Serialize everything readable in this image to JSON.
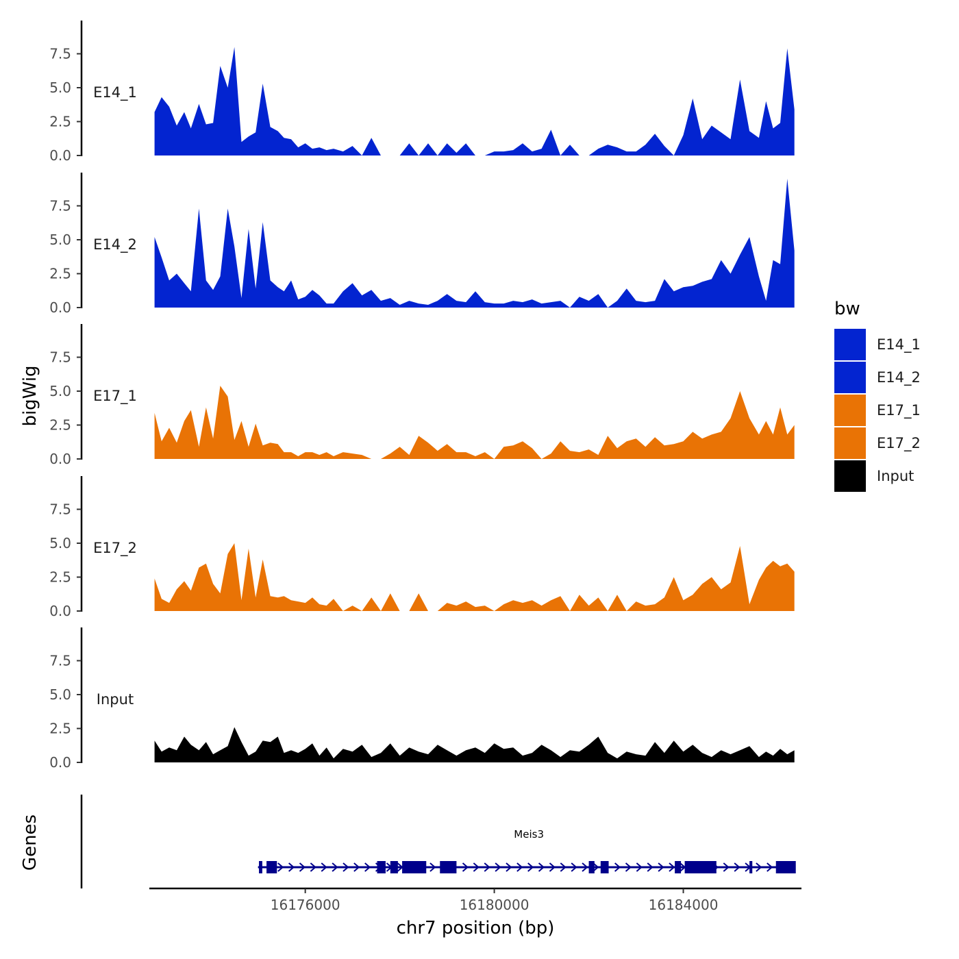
{
  "chart_data": {
    "type": "area",
    "xlabel": "chr7 position (bp)",
    "ylabel": "bigWig",
    "xlim": [
      16172700,
      16186500
    ],
    "ylim": [
      0,
      10
    ],
    "x_ticks": [
      16176000,
      16180000,
      16184000
    ],
    "x_tick_labels": [
      "16176000",
      "16180000",
      "16184000"
    ],
    "y_ticks": [
      0,
      2.5,
      5,
      7.5
    ],
    "y_tick_labels": [
      "0.0",
      "2.5",
      "5.0",
      "7.5"
    ],
    "legend": {
      "title": "bw",
      "entries": [
        {
          "label": "E14_1",
          "color": "#0324d0"
        },
        {
          "label": "E14_2",
          "color": "#0324d0"
        },
        {
          "label": "E17_1",
          "color": "#e97305"
        },
        {
          "label": "E17_2",
          "color": "#e97305"
        },
        {
          "label": "Input",
          "color": "#000000"
        }
      ]
    },
    "series": [
      {
        "name": "E14_1",
        "color": "#0324d0",
        "x": [
          16172810,
          16172960,
          16173120,
          16173280,
          16173440,
          16173580,
          16173750,
          16173900,
          16174050,
          16174200,
          16174360,
          16174500,
          16174650,
          16174800,
          16174950,
          16175100,
          16175260,
          16175420,
          16175550,
          16175700,
          16175850,
          16176000,
          16176150,
          16176300,
          16176450,
          16176600,
          16176800,
          16177000,
          16177200,
          16177400,
          16177600,
          16177800,
          16178000,
          16178200,
          16178400,
          16178600,
          16178800,
          16179000,
          16179200,
          16179400,
          16179600,
          16179800,
          16180000,
          16180200,
          16180400,
          16180600,
          16180800,
          16181000,
          16181200,
          16181400,
          16181600,
          16181800,
          16182000,
          16182200,
          16182400,
          16182600,
          16182800,
          16183000,
          16183200,
          16183400,
          16183600,
          16183800,
          16184000,
          16184200,
          16184400,
          16184600,
          16184800,
          16185000,
          16185200,
          16185400,
          16185600,
          16185750,
          16185900,
          16186050,
          16186200,
          16186350
        ],
        "values": [
          3.2,
          4.3,
          3.6,
          2.2,
          3.2,
          2.0,
          3.8,
          2.3,
          2.4,
          6.6,
          5.0,
          8.0,
          1.0,
          1.4,
          1.7,
          5.3,
          2.1,
          1.8,
          1.3,
          1.2,
          0.6,
          0.9,
          0.5,
          0.6,
          0.4,
          0.5,
          0.3,
          0.7,
          0.0,
          1.3,
          0.0,
          0.0,
          0.0,
          0.9,
          0.0,
          0.9,
          0.0,
          0.9,
          0.2,
          0.9,
          0.0,
          0.0,
          0.3,
          0.3,
          0.4,
          0.9,
          0.3,
          0.5,
          1.9,
          0.0,
          0.8,
          0.0,
          0.0,
          0.5,
          0.8,
          0.6,
          0.3,
          0.3,
          0.8,
          1.6,
          0.7,
          0.0,
          1.5,
          4.2,
          1.2,
          2.2,
          1.7,
          1.2,
          5.6,
          1.8,
          1.3,
          4.0,
          2.0,
          2.4,
          7.9,
          3.4
        ]
      },
      {
        "name": "E14_2",
        "color": "#0324d0",
        "x": [
          16172810,
          16172960,
          16173120,
          16173280,
          16173440,
          16173580,
          16173750,
          16173900,
          16174050,
          16174200,
          16174360,
          16174500,
          16174650,
          16174800,
          16174950,
          16175100,
          16175260,
          16175420,
          16175550,
          16175700,
          16175850,
          16176000,
          16176150,
          16176300,
          16176450,
          16176600,
          16176800,
          16177000,
          16177200,
          16177400,
          16177600,
          16177800,
          16178000,
          16178200,
          16178400,
          16178600,
          16178800,
          16179000,
          16179200,
          16179400,
          16179600,
          16179800,
          16180000,
          16180200,
          16180400,
          16180600,
          16180800,
          16181000,
          16181200,
          16181400,
          16181600,
          16181800,
          16182000,
          16182200,
          16182400,
          16182600,
          16182800,
          16183000,
          16183200,
          16183400,
          16183600,
          16183800,
          16184000,
          16184200,
          16184400,
          16184600,
          16184800,
          16185000,
          16185200,
          16185400,
          16185600,
          16185750,
          16185900,
          16186050,
          16186200,
          16186350
        ],
        "values": [
          5.2,
          3.7,
          2.0,
          2.5,
          1.8,
          1.2,
          7.3,
          2.0,
          1.3,
          2.3,
          7.3,
          4.5,
          0.7,
          5.8,
          1.4,
          6.3,
          2.0,
          1.5,
          1.2,
          2.0,
          0.6,
          0.8,
          1.3,
          0.9,
          0.3,
          0.3,
          1.2,
          1.8,
          0.9,
          1.3,
          0.5,
          0.7,
          0.2,
          0.5,
          0.3,
          0.2,
          0.5,
          1.0,
          0.5,
          0.4,
          1.2,
          0.4,
          0.3,
          0.3,
          0.5,
          0.4,
          0.6,
          0.3,
          0.4,
          0.5,
          0.0,
          0.8,
          0.5,
          1.0,
          0.0,
          0.5,
          1.4,
          0.5,
          0.4,
          0.5,
          2.1,
          1.2,
          1.5,
          1.6,
          1.9,
          2.1,
          3.5,
          2.5,
          3.9,
          5.2,
          2.3,
          0.5,
          3.5,
          3.2,
          9.5,
          4.2
        ]
      },
      {
        "name": "E17_1",
        "color": "#e97305",
        "x": [
          16172810,
          16172960,
          16173120,
          16173280,
          16173440,
          16173580,
          16173750,
          16173900,
          16174050,
          16174200,
          16174360,
          16174500,
          16174650,
          16174800,
          16174950,
          16175100,
          16175260,
          16175420,
          16175550,
          16175700,
          16175850,
          16176000,
          16176150,
          16176300,
          16176450,
          16176600,
          16176800,
          16177000,
          16177200,
          16177400,
          16177600,
          16177800,
          16178000,
          16178200,
          16178400,
          16178600,
          16178800,
          16179000,
          16179200,
          16179400,
          16179600,
          16179800,
          16180000,
          16180200,
          16180400,
          16180600,
          16180800,
          16181000,
          16181200,
          16181400,
          16181600,
          16181800,
          16182000,
          16182200,
          16182400,
          16182600,
          16182800,
          16183000,
          16183200,
          16183400,
          16183600,
          16183800,
          16184000,
          16184200,
          16184400,
          16184600,
          16184800,
          16185000,
          16185200,
          16185400,
          16185600,
          16185750,
          16185900,
          16186050,
          16186200,
          16186350
        ],
        "values": [
          3.4,
          1.3,
          2.3,
          1.2,
          2.8,
          3.6,
          0.9,
          3.8,
          1.5,
          5.4,
          4.6,
          1.4,
          2.8,
          0.9,
          2.6,
          1.0,
          1.2,
          1.1,
          0.5,
          0.5,
          0.2,
          0.5,
          0.5,
          0.3,
          0.5,
          0.2,
          0.5,
          0.4,
          0.3,
          0.0,
          0.0,
          0.4,
          0.9,
          0.3,
          1.7,
          1.2,
          0.6,
          1.1,
          0.5,
          0.5,
          0.2,
          0.5,
          0.0,
          0.9,
          1.0,
          1.3,
          0.8,
          0.0,
          0.4,
          1.3,
          0.6,
          0.5,
          0.7,
          0.3,
          1.7,
          0.8,
          1.3,
          1.5,
          0.9,
          1.6,
          1.0,
          1.1,
          1.3,
          2.0,
          1.5,
          1.8,
          2.0,
          3.0,
          5.0,
          3.0,
          1.8,
          2.8,
          1.8,
          3.8,
          1.8,
          2.5
        ]
      },
      {
        "name": "E17_2",
        "color": "#e97305",
        "x": [
          16172810,
          16172960,
          16173120,
          16173280,
          16173440,
          16173580,
          16173750,
          16173900,
          16174050,
          16174200,
          16174360,
          16174500,
          16174650,
          16174800,
          16174950,
          16175100,
          16175260,
          16175420,
          16175550,
          16175700,
          16175850,
          16176000,
          16176150,
          16176300,
          16176450,
          16176600,
          16176800,
          16177000,
          16177200,
          16177400,
          16177600,
          16177800,
          16178000,
          16178200,
          16178400,
          16178600,
          16178800,
          16179000,
          16179200,
          16179400,
          16179600,
          16179800,
          16180000,
          16180200,
          16180400,
          16180600,
          16180800,
          16181000,
          16181200,
          16181400,
          16181600,
          16181800,
          16182000,
          16182200,
          16182400,
          16182600,
          16182800,
          16183000,
          16183200,
          16183400,
          16183600,
          16183800,
          16184000,
          16184200,
          16184400,
          16184600,
          16184800,
          16185000,
          16185200,
          16185400,
          16185600,
          16185750,
          16185900,
          16186050,
          16186200,
          16186350
        ],
        "values": [
          2.4,
          0.9,
          0.6,
          1.6,
          2.2,
          1.5,
          3.2,
          3.5,
          2.0,
          1.3,
          4.2,
          5.0,
          0.8,
          4.6,
          1.0,
          3.8,
          1.1,
          1.0,
          1.1,
          0.8,
          0.7,
          0.6,
          1.0,
          0.5,
          0.4,
          0.9,
          0.0,
          0.4,
          0.0,
          1.0,
          0.0,
          1.3,
          0.0,
          0.0,
          1.3,
          0.0,
          0.0,
          0.6,
          0.4,
          0.7,
          0.3,
          0.4,
          0.0,
          0.5,
          0.8,
          0.6,
          0.8,
          0.4,
          0.8,
          1.1,
          0.0,
          1.2,
          0.4,
          1.0,
          0.0,
          1.2,
          0.0,
          0.7,
          0.4,
          0.5,
          1.0,
          2.5,
          0.8,
          1.2,
          2.0,
          2.5,
          1.6,
          2.1,
          4.8,
          0.5,
          2.3,
          3.2,
          3.7,
          3.3,
          3.5,
          2.9
        ]
      },
      {
        "name": "Input",
        "color": "#000000",
        "x": [
          16172810,
          16172960,
          16173120,
          16173280,
          16173440,
          16173580,
          16173750,
          16173900,
          16174050,
          16174200,
          16174360,
          16174500,
          16174650,
          16174800,
          16174950,
          16175100,
          16175260,
          16175420,
          16175550,
          16175700,
          16175850,
          16176000,
          16176150,
          16176300,
          16176450,
          16176600,
          16176800,
          16177000,
          16177200,
          16177400,
          16177600,
          16177800,
          16178000,
          16178200,
          16178400,
          16178600,
          16178800,
          16179000,
          16179200,
          16179400,
          16179600,
          16179800,
          16180000,
          16180200,
          16180400,
          16180600,
          16180800,
          16181000,
          16181200,
          16181400,
          16181600,
          16181800,
          16182000,
          16182200,
          16182400,
          16182600,
          16182800,
          16183000,
          16183200,
          16183400,
          16183600,
          16183800,
          16184000,
          16184200,
          16184400,
          16184600,
          16184800,
          16185000,
          16185200,
          16185400,
          16185600,
          16185750,
          16185900,
          16186050,
          16186200,
          16186350
        ],
        "values": [
          1.6,
          0.8,
          1.1,
          0.9,
          1.9,
          1.3,
          0.9,
          1.5,
          0.6,
          0.9,
          1.2,
          2.6,
          1.5,
          0.5,
          0.8,
          1.6,
          1.5,
          1.9,
          0.7,
          0.9,
          0.7,
          1.0,
          1.4,
          0.5,
          1.1,
          0.3,
          1.0,
          0.8,
          1.3,
          0.4,
          0.7,
          1.4,
          0.5,
          1.1,
          0.8,
          0.6,
          1.3,
          0.9,
          0.5,
          0.9,
          1.1,
          0.7,
          1.4,
          1.0,
          1.1,
          0.5,
          0.7,
          1.3,
          0.9,
          0.4,
          0.9,
          0.8,
          1.3,
          1.9,
          0.7,
          0.3,
          0.8,
          0.6,
          0.5,
          1.5,
          0.7,
          1.6,
          0.8,
          1.3,
          0.7,
          0.4,
          0.9,
          0.6,
          0.9,
          1.2,
          0.4,
          0.8,
          0.5,
          1.0,
          0.6,
          0.9
        ]
      }
    ],
    "gene_track": {
      "title": "Genes",
      "gene_name": "Meis3",
      "color": "#00008b",
      "start": 16175000,
      "end": 16186350,
      "strand": "+",
      "exons": [
        [
          16175020,
          16175090
        ],
        [
          16175180,
          16175400
        ],
        [
          16177520,
          16177700
        ],
        [
          16177800,
          16177960
        ],
        [
          16178050,
          16178560
        ],
        [
          16178850,
          16179200
        ],
        [
          16182000,
          16182120
        ],
        [
          16182250,
          16182420
        ],
        [
          16183820,
          16183950
        ],
        [
          16184030,
          16184700
        ],
        [
          16185400,
          16185460
        ],
        [
          16185960,
          16186380
        ]
      ]
    }
  }
}
